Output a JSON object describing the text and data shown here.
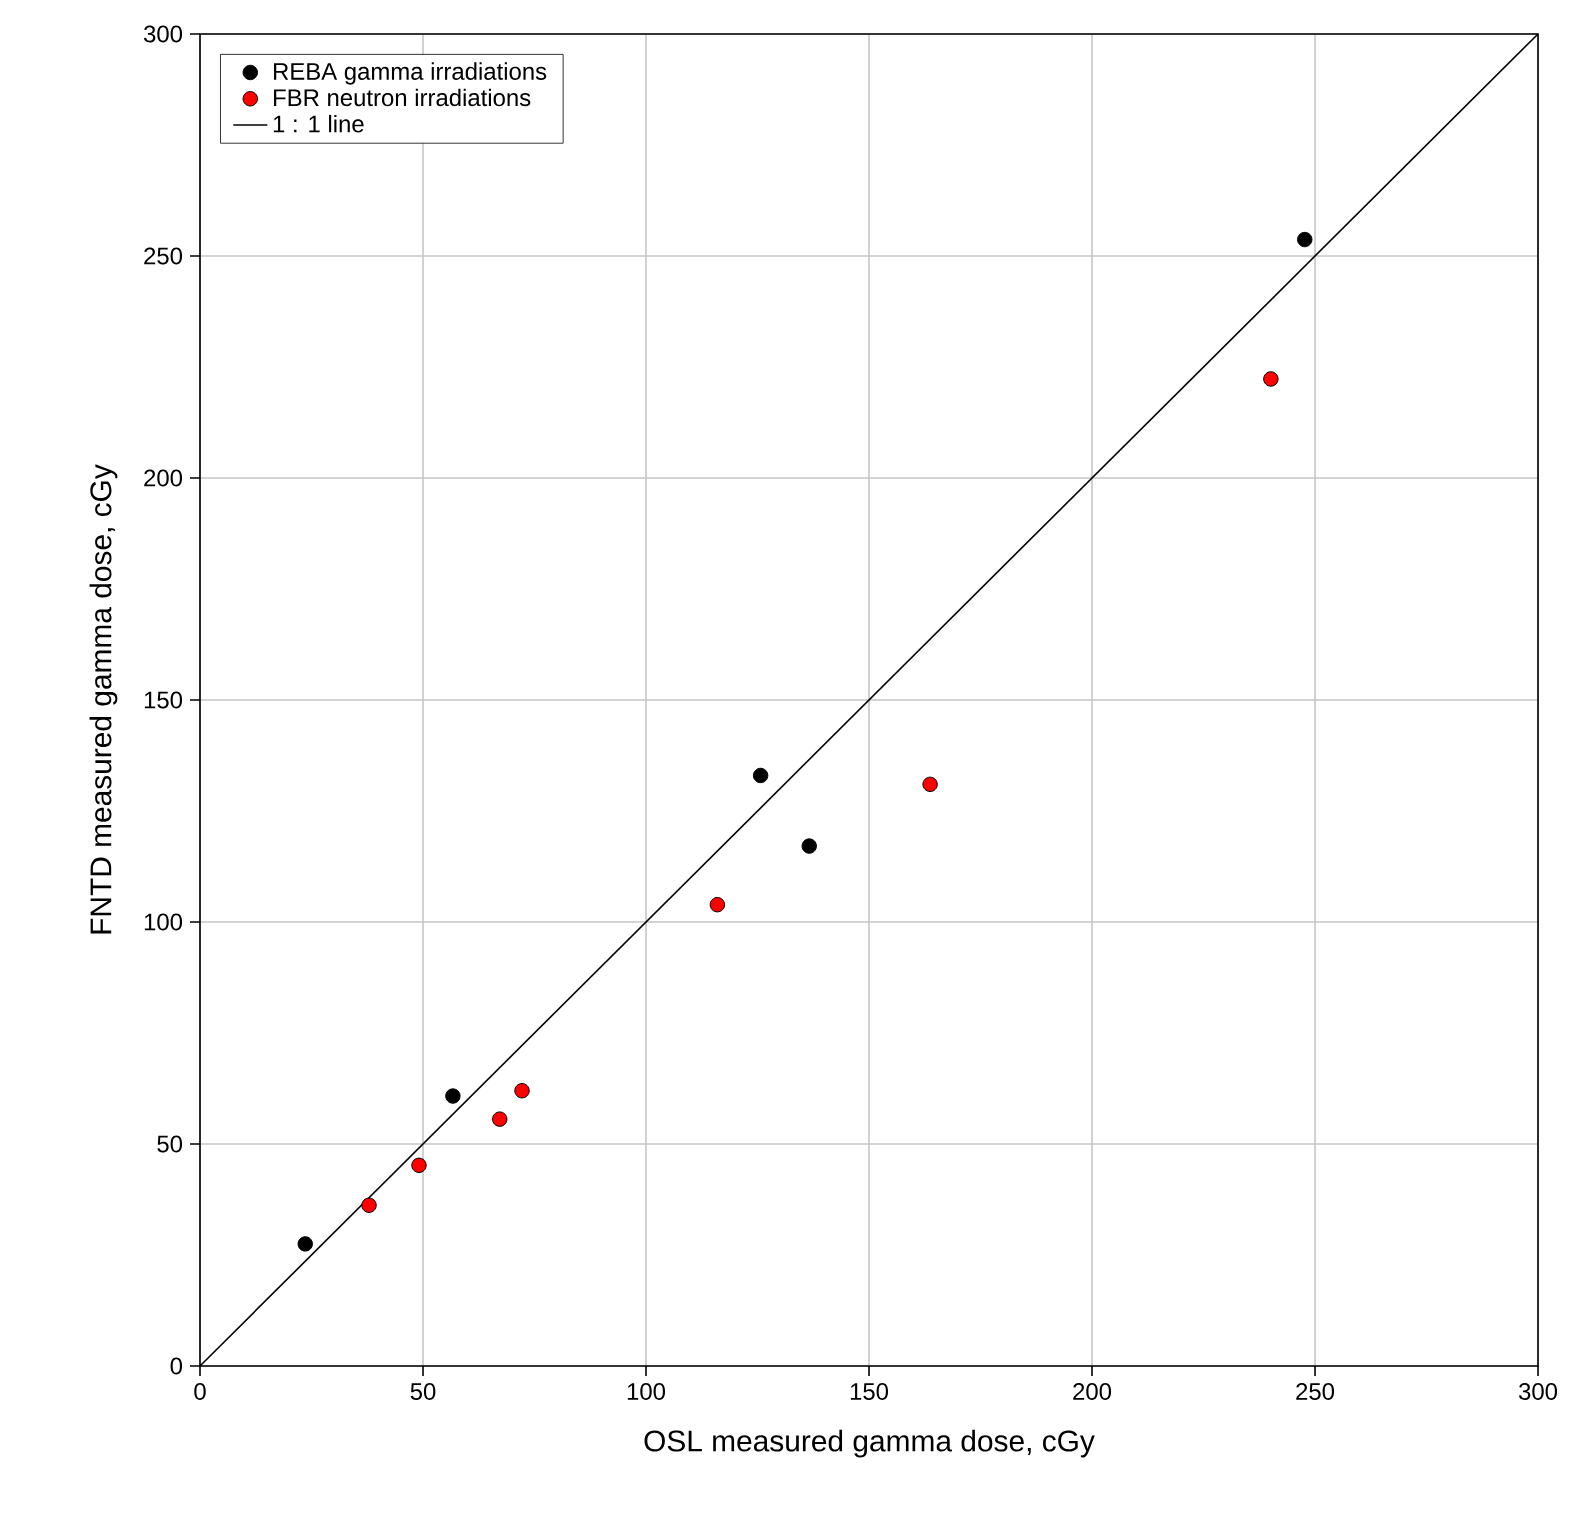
{
  "chart_data": {
    "type": "scatter",
    "xlabel": "OSL measured gamma dose, cGy",
    "ylabel": "FNTD measured gamma dose, cGy",
    "xlim": [
      0,
      300
    ],
    "ylim": [
      0,
      300
    ],
    "xticks": [
      0,
      50,
      100,
      150,
      200,
      250,
      300
    ],
    "yticks": [
      0,
      50,
      100,
      150,
      200,
      250,
      300
    ],
    "grid": true,
    "legend": "top left",
    "marker": "circle",
    "series": [
      {
        "name": "REBA gamma irradiations",
        "color": "#000000",
        "x": [
          23.6,
          56.7,
          125.7,
          136.6,
          247.7
        ],
        "values": [
          27.5,
          60.8,
          133,
          117.1,
          253.7
        ]
      },
      {
        "name": "FBR neutron irradiations",
        "color": "#ff0000",
        "x": [
          37.9,
          49.1,
          67.2,
          72.2,
          116,
          163.7,
          240.1
        ],
        "values": [
          36.2,
          45.2,
          55.6,
          62,
          103.9,
          131,
          222.3
        ]
      },
      {
        "name": "1 : 1 line",
        "type": "line",
        "color": "#000000",
        "marker": "none",
        "x": [
          0,
          300
        ],
        "values": [
          0,
          300
        ]
      }
    ]
  }
}
